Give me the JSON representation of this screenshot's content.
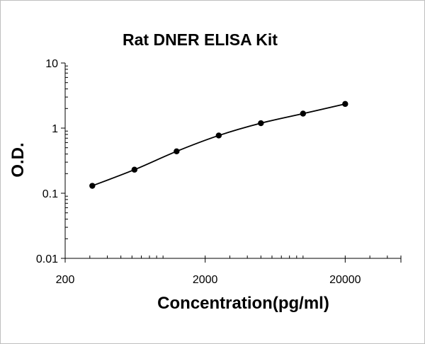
{
  "chart_data": {
    "type": "scatter",
    "title": "Rat DNER ELISA Kit",
    "xlabel": "Concentration(pg/ml)",
    "ylabel": "O.D.",
    "x_scale": "log",
    "y_scale": "log",
    "xlim": [
      200,
      50000
    ],
    "ylim": [
      0.01,
      10
    ],
    "x_ticks": [
      {
        "value": 200,
        "label": "200"
      },
      {
        "value": 2000,
        "label": "2000"
      },
      {
        "value": 20000,
        "label": "20000"
      }
    ],
    "y_ticks": [
      {
        "value": 10,
        "label": "10"
      },
      {
        "value": 1,
        "label": "1"
      },
      {
        "value": 0.1,
        "label": "0.1"
      },
      {
        "value": 0.01,
        "label": "0.01"
      }
    ],
    "grid": false,
    "legend": "none",
    "series": [
      {
        "x": [
          312.5,
          625,
          1250,
          2500,
          5000,
          10000,
          20000
        ],
        "y": [
          0.13,
          0.23,
          0.44,
          0.77,
          1.19,
          1.67,
          2.35
        ]
      }
    ],
    "colors": {
      "points": "#000000",
      "line": "#000000",
      "axes": "#000000"
    }
  }
}
